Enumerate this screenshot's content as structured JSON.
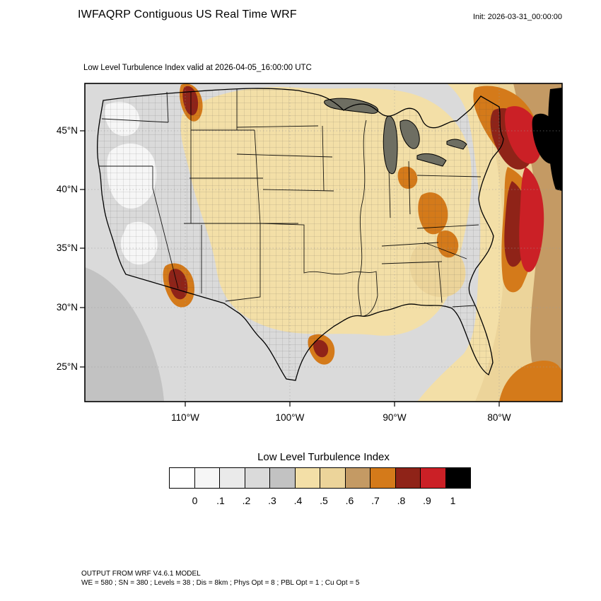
{
  "header": {
    "title": "IWFAQRP Contiguous US Real Time WRF",
    "init_label": "Init: 2026-03-31_00:00:00"
  },
  "map": {
    "subtitle": "Low Level Turbulence Index valid at 2026-04-05_16:00:00 UTC",
    "lat_ticks": [
      "45°N",
      "40°N",
      "35°N",
      "30°N",
      "25°N"
    ],
    "lon_ticks": [
      "110°W",
      "100°W",
      "90°W",
      "80°W"
    ]
  },
  "colorbar": {
    "title": "Low Level Turbulence Index",
    "tick_labels": [
      "0",
      ".1",
      ".2",
      ".3",
      ".4",
      ".5",
      ".6",
      ".7",
      ".8",
      ".9",
      "1"
    ],
    "colors": [
      "#ffffff",
      "#f6f6f6",
      "#eaeaea",
      "#dadada",
      "#c2c2c2",
      "#f3dfa7",
      "#ecd49a",
      "#c49a64",
      "#d47a1a",
      "#8f2318",
      "#cb2026",
      "#000000"
    ]
  },
  "footer": {
    "line1": "OUTPUT FROM WRF V4.6.1 MODEL",
    "line2": "WE = 580 ; SN = 380 ; Levels = 38 ; Dis = 8km ; Phys Opt = 8 ; PBL Opt = 1 ; Cu Opt = 5"
  }
}
